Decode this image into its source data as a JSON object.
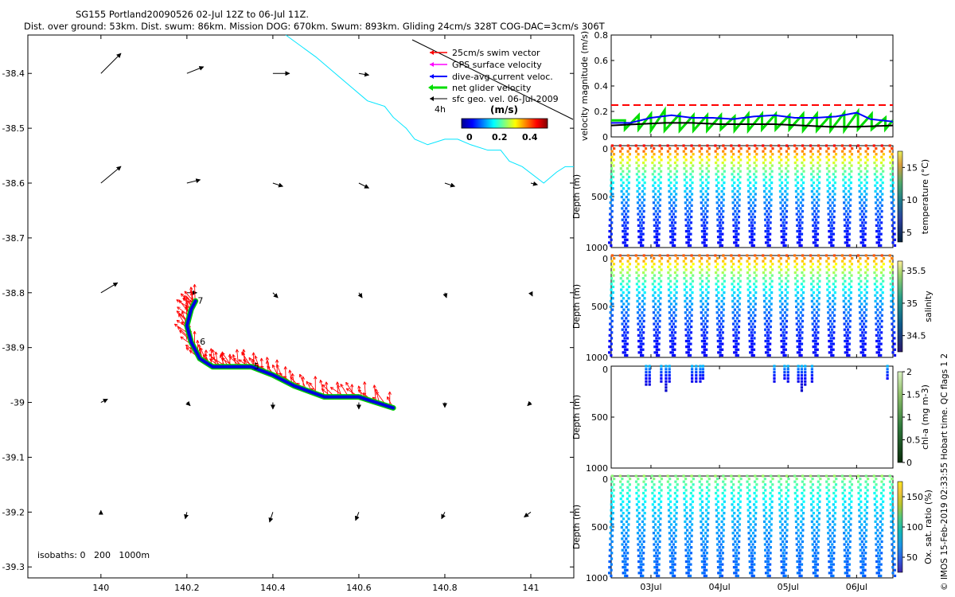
{
  "header": {
    "line1": "SG155 Portland20090526 02-Jul 12Z to 06-Jul 11Z.",
    "line2": "Dist. over ground: 53km. Dist. swum: 86km. Mission DOG: 670km. Swum: 893km. Gliding 24cm/s 328T COG-DAC=3cm/s 306T"
  },
  "legend": {
    "items": [
      {
        "label": "25cm/s swim vector",
        "color": "#ff0000"
      },
      {
        "label": "GPS surface velocity",
        "color": "#ff00ff"
      },
      {
        "label": "dive-avg current veloc.",
        "color": "#0000ff"
      },
      {
        "label": "net glider velocity",
        "color": "#00dd00"
      },
      {
        "label": "sfc geo. vel. 06-Jul-2009",
        "color": "#000000"
      }
    ],
    "interval_label": "4h",
    "colorbar_unit": "(m/s)",
    "colorbar_ticks": [
      "0",
      "0.2",
      "0.4"
    ]
  },
  "map_footer": {
    "isobaths": "isobaths: 0   200   1000m"
  },
  "credit": "© IMOS 15-Feb-2019 02:33:55 Hobart time. QC flags 1  2",
  "chart_data": [
    {
      "type": "scatter",
      "name": "glider-track-map",
      "title": "SG155 Portland20090526 02-Jul 12Z to 06-Jul 11Z.",
      "xlabel": "",
      "ylabel": "",
      "xlim": [
        139.83,
        141.1
      ],
      "ylim": [
        -39.32,
        -38.33
      ],
      "x_ticks": [
        "140",
        "140.2",
        "140.4",
        "140.6",
        "140.8",
        "141"
      ],
      "y_ticks": [
        "-38.4",
        "-38.5",
        "-38.6",
        "-38.7",
        "-38.8",
        "-38.9",
        "-39",
        "-39.1",
        "-39.2",
        "-39.3"
      ],
      "track": {
        "lon": [
          140.68,
          140.6,
          140.52,
          140.45,
          140.4,
          140.35,
          140.3,
          140.26,
          140.23,
          140.21,
          140.2,
          140.21,
          140.22
        ],
        "lat": [
          -39.01,
          -38.99,
          -38.99,
          -38.97,
          -38.95,
          -38.935,
          -38.935,
          -38.935,
          -38.92,
          -38.89,
          -38.86,
          -38.83,
          -38.815
        ]
      },
      "track_labels": [
        {
          "text": "7",
          "lon": 140.225,
          "lat": -38.82
        },
        {
          "text": "6",
          "lon": 140.23,
          "lat": -38.895
        },
        {
          "text": "5",
          "lon": 140.355,
          "lat": -38.94
        }
      ],
      "current_vectors": [
        {
          "lon": 140.0,
          "lat": -38.4,
          "u": 0.06,
          "v": 0.06
        },
        {
          "lon": 140.2,
          "lat": -38.4,
          "u": 0.05,
          "v": 0.02
        },
        {
          "lon": 140.4,
          "lat": -38.4,
          "u": 0.05,
          "v": 0.0
        },
        {
          "lon": 140.6,
          "lat": -38.4,
          "u": 0.03,
          "v": -0.005
        },
        {
          "lon": 140.0,
          "lat": -38.6,
          "u": 0.06,
          "v": 0.05
        },
        {
          "lon": 140.2,
          "lat": -38.6,
          "u": 0.04,
          "v": 0.01
        },
        {
          "lon": 140.4,
          "lat": -38.6,
          "u": 0.03,
          "v": -0.01
        },
        {
          "lon": 140.6,
          "lat": -38.6,
          "u": 0.03,
          "v": -0.015
        },
        {
          "lon": 140.8,
          "lat": -38.6,
          "u": 0.03,
          "v": -0.01
        },
        {
          "lon": 141.0,
          "lat": -38.6,
          "u": 0.02,
          "v": -0.005
        },
        {
          "lon": 140.0,
          "lat": -38.8,
          "u": 0.05,
          "v": 0.03
        },
        {
          "lon": 140.2,
          "lat": -38.8,
          "u": 0.03,
          "v": 0.0
        },
        {
          "lon": 140.4,
          "lat": -38.8,
          "u": 0.015,
          "v": -0.015
        },
        {
          "lon": 140.6,
          "lat": -38.8,
          "u": 0.01,
          "v": -0.015
        },
        {
          "lon": 140.8,
          "lat": -38.8,
          "u": 0.005,
          "v": -0.015
        },
        {
          "lon": 141.0,
          "lat": -38.8,
          "u": 0.005,
          "v": -0.01
        },
        {
          "lon": 140.0,
          "lat": -39.0,
          "u": 0.02,
          "v": 0.01
        },
        {
          "lon": 140.2,
          "lat": -39.0,
          "u": 0.01,
          "v": -0.01
        },
        {
          "lon": 140.4,
          "lat": -39.0,
          "u": 0.0,
          "v": -0.02
        },
        {
          "lon": 140.6,
          "lat": -39.0,
          "u": 0.0,
          "v": -0.02
        },
        {
          "lon": 140.8,
          "lat": -39.0,
          "u": 0.0,
          "v": -0.015
        },
        {
          "lon": 141.0,
          "lat": -39.0,
          "u": -0.01,
          "v": -0.01
        },
        {
          "lon": 140.0,
          "lat": -39.2,
          "u": 0.0,
          "v": 0.005
        },
        {
          "lon": 140.2,
          "lat": -39.2,
          "u": -0.005,
          "v": -0.02
        },
        {
          "lon": 140.4,
          "lat": -39.2,
          "u": -0.01,
          "v": -0.03
        },
        {
          "lon": 140.6,
          "lat": -39.2,
          "u": -0.01,
          "v": -0.025
        },
        {
          "lon": 140.8,
          "lat": -39.2,
          "u": -0.01,
          "v": -0.02
        },
        {
          "lon": 141.0,
          "lat": -39.2,
          "u": -0.02,
          "v": -0.015
        }
      ],
      "coastline": {
        "lon": [
          140.43,
          140.5,
          140.56,
          140.62,
          140.66,
          140.68,
          140.71,
          140.73,
          140.76,
          140.8,
          140.83,
          140.86,
          140.9,
          140.93,
          140.95,
          140.98,
          141.03,
          141.06,
          141.08,
          141.1
        ],
        "lat": [
          -38.33,
          -38.37,
          -38.41,
          -38.45,
          -38.46,
          -38.48,
          -38.5,
          -38.52,
          -38.53,
          -38.52,
          -38.52,
          -38.53,
          -38.54,
          -38.54,
          -38.56,
          -38.57,
          -38.6,
          -38.58,
          -38.57,
          -38.57
        ]
      }
    },
    {
      "type": "line",
      "name": "velocity-magnitude",
      "ylabel": "velocity magnitude (m/s)",
      "xlim": [
        2.42,
        6.53
      ],
      "ylim": [
        0,
        0.8
      ],
      "y_ticks": [
        "0",
        "0.2",
        "0.4",
        "0.6",
        "0.8"
      ],
      "series": [
        {
          "name": "25cm/s reference",
          "color": "#ff0000",
          "x": [
            2.42,
            6.53
          ],
          "values": [
            0.25,
            0.25
          ]
        },
        {
          "name": "net glider velocity",
          "color": "#00dd00",
          "x": [
            2.42,
            2.62,
            2.62,
            2.82,
            2.82,
            3.0,
            3.0,
            3.2,
            3.2,
            3.42,
            3.42,
            3.62,
            3.62,
            3.82,
            3.82,
            4.02,
            4.02,
            4.22,
            4.22,
            4.42,
            4.42,
            4.62,
            4.62,
            4.82,
            4.82,
            5.02,
            5.02,
            5.22,
            5.22,
            5.42,
            5.42,
            5.62,
            5.62,
            5.82,
            5.82,
            6.02,
            6.02,
            6.22,
            6.22,
            6.42,
            6.42,
            6.53
          ],
          "values": [
            0.13,
            0.13,
            0.06,
            0.17,
            0.06,
            0.18,
            0.05,
            0.21,
            0.05,
            0.18,
            0.05,
            0.17,
            0.05,
            0.17,
            0.05,
            0.17,
            0.06,
            0.16,
            0.05,
            0.18,
            0.05,
            0.18,
            0.06,
            0.18,
            0.06,
            0.17,
            0.06,
            0.18,
            0.05,
            0.18,
            0.05,
            0.17,
            0.05,
            0.19,
            0.05,
            0.2,
            0.06,
            0.18,
            0.06,
            0.15,
            0.06,
            0.13
          ]
        },
        {
          "name": "dive-avg current",
          "color": "#0000ff",
          "x": [
            2.42,
            2.7,
            3.0,
            3.3,
            3.6,
            3.9,
            4.2,
            4.5,
            4.8,
            5.1,
            5.4,
            5.7,
            6.0,
            6.2,
            6.53
          ],
          "values": [
            0.11,
            0.11,
            0.15,
            0.17,
            0.15,
            0.15,
            0.14,
            0.16,
            0.17,
            0.15,
            0.15,
            0.16,
            0.19,
            0.14,
            0.12
          ]
        },
        {
          "name": "sfc geo. vel.",
          "color": "#000000",
          "x": [
            2.42,
            2.8,
            3.2,
            3.6,
            4.0,
            4.4,
            4.8,
            5.2,
            5.6,
            6.0,
            6.53
          ],
          "values": [
            0.09,
            0.1,
            0.11,
            0.11,
            0.1,
            0.1,
            0.1,
            0.09,
            0.08,
            0.08,
            0.09
          ]
        }
      ]
    },
    {
      "type": "scatter",
      "name": "temperature-section",
      "ylabel": "Depth (m)",
      "colorbar_label": "temperature (°C)",
      "colorbar_ticks": [
        "5",
        "10",
        "15"
      ],
      "xlim": [
        2.42,
        6.53
      ],
      "ylim": [
        1000,
        0
      ],
      "y_ticks": [
        "0",
        "500",
        "1000"
      ],
      "profiles": 36,
      "max_depth": 1000,
      "surface_value": 15.5,
      "deep_value": 4.5,
      "top_of_scale": 17.5,
      "bottom_of_scale": 3.5
    },
    {
      "type": "scatter",
      "name": "salinity-section",
      "ylabel": "Depth (m)",
      "colorbar_label": "salinity",
      "colorbar_ticks": [
        "34.5",
        "35",
        "35.5"
      ],
      "xlim": [
        2.42,
        6.53
      ],
      "ylim": [
        1000,
        0
      ],
      "y_ticks": [
        "0",
        "500",
        "1000"
      ],
      "profiles": 36,
      "max_depth": 1000,
      "surface_value": 35.35,
      "deep_value": 34.35,
      "top_of_scale": 35.65,
      "bottom_of_scale": 34.25
    },
    {
      "type": "scatter",
      "name": "chlorophyll-section",
      "ylabel": "Depth (m)",
      "colorbar_label": "chl-a (mg m-3)",
      "colorbar_ticks": [
        "0",
        "0.5",
        "1",
        "1.5",
        "2"
      ],
      "xlim": [
        2.42,
        6.53
      ],
      "ylim": [
        1000,
        0
      ],
      "y_ticks": [
        "0",
        "500",
        "1000"
      ],
      "profile_x": [
        2.93,
        2.98,
        3.15,
        3.22,
        3.27,
        3.6,
        3.66,
        3.72,
        3.76,
        4.8,
        4.95,
        5.0,
        5.15,
        5.2,
        5.25,
        5.35,
        6.45
      ],
      "profile_max_depth": [
        180,
        180,
        150,
        250,
        150,
        150,
        150,
        150,
        130,
        150,
        120,
        150,
        150,
        250,
        180,
        150,
        120
      ],
      "surface_value": 0.6,
      "deep_value": 0.05,
      "top_of_scale": 2,
      "bottom_of_scale": 0
    },
    {
      "type": "scatter",
      "name": "oxygen-section",
      "ylabel": "Depth (m)",
      "colorbar_label": "Ox. sat. ratio (%)",
      "colorbar_ticks": [
        "50",
        "100",
        "150"
      ],
      "x_ticks": [
        "03Jul",
        "04Jul",
        "05Jul",
        "06Jul"
      ],
      "x_tick_values": [
        3,
        4,
        5,
        6
      ],
      "xlim": [
        2.42,
        6.53
      ],
      "ylim": [
        1000,
        0
      ],
      "y_ticks": [
        "0",
        "500",
        "1000"
      ],
      "profiles": 36,
      "max_depth": 1000,
      "surface_value": 102,
      "deep_value": 55,
      "top_of_scale": 175,
      "bottom_of_scale": 25
    }
  ]
}
